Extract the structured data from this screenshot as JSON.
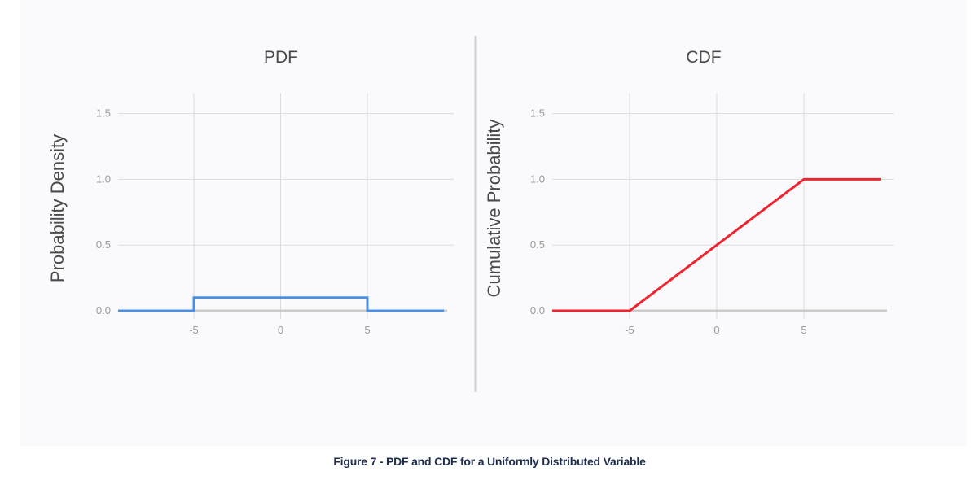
{
  "caption": "Figure 7 - PDF and CDF for a Uniformly Distributed Variable",
  "chart_data": [
    {
      "type": "line",
      "title": "PDF",
      "xlabel": "",
      "ylabel": "Probability Density",
      "xlim": [
        -9.0,
        9.0
      ],
      "ylim": [
        0.0,
        1.5
      ],
      "xticks": [
        "-5",
        "0",
        "5"
      ],
      "yticks": [
        "0.0",
        "0.5",
        "1.0",
        "1.5"
      ],
      "grid": true,
      "color": "#4a8fe0",
      "series": [
        {
          "x": [
            -9.0,
            -5.0,
            -5.0,
            5.0,
            5.0,
            9.0
          ],
          "y": [
            0.0,
            0.0,
            0.1,
            0.1,
            0.0,
            0.0
          ]
        }
      ]
    },
    {
      "type": "line",
      "title": "CDF",
      "xlabel": "",
      "ylabel": "Cumulative Probability",
      "xlim": [
        -9.0,
        9.0
      ],
      "ylim": [
        0.0,
        1.5
      ],
      "xticks": [
        "-5",
        "0",
        "5"
      ],
      "yticks": [
        "0.0",
        "0.5",
        "1.0",
        "1.5"
      ],
      "grid": true,
      "color": "#f0242e",
      "series": [
        {
          "x": [
            -9.0,
            -5.0,
            5.0,
            9.0
          ],
          "y": [
            0.0,
            0.0,
            1.0,
            1.0
          ]
        }
      ]
    }
  ]
}
